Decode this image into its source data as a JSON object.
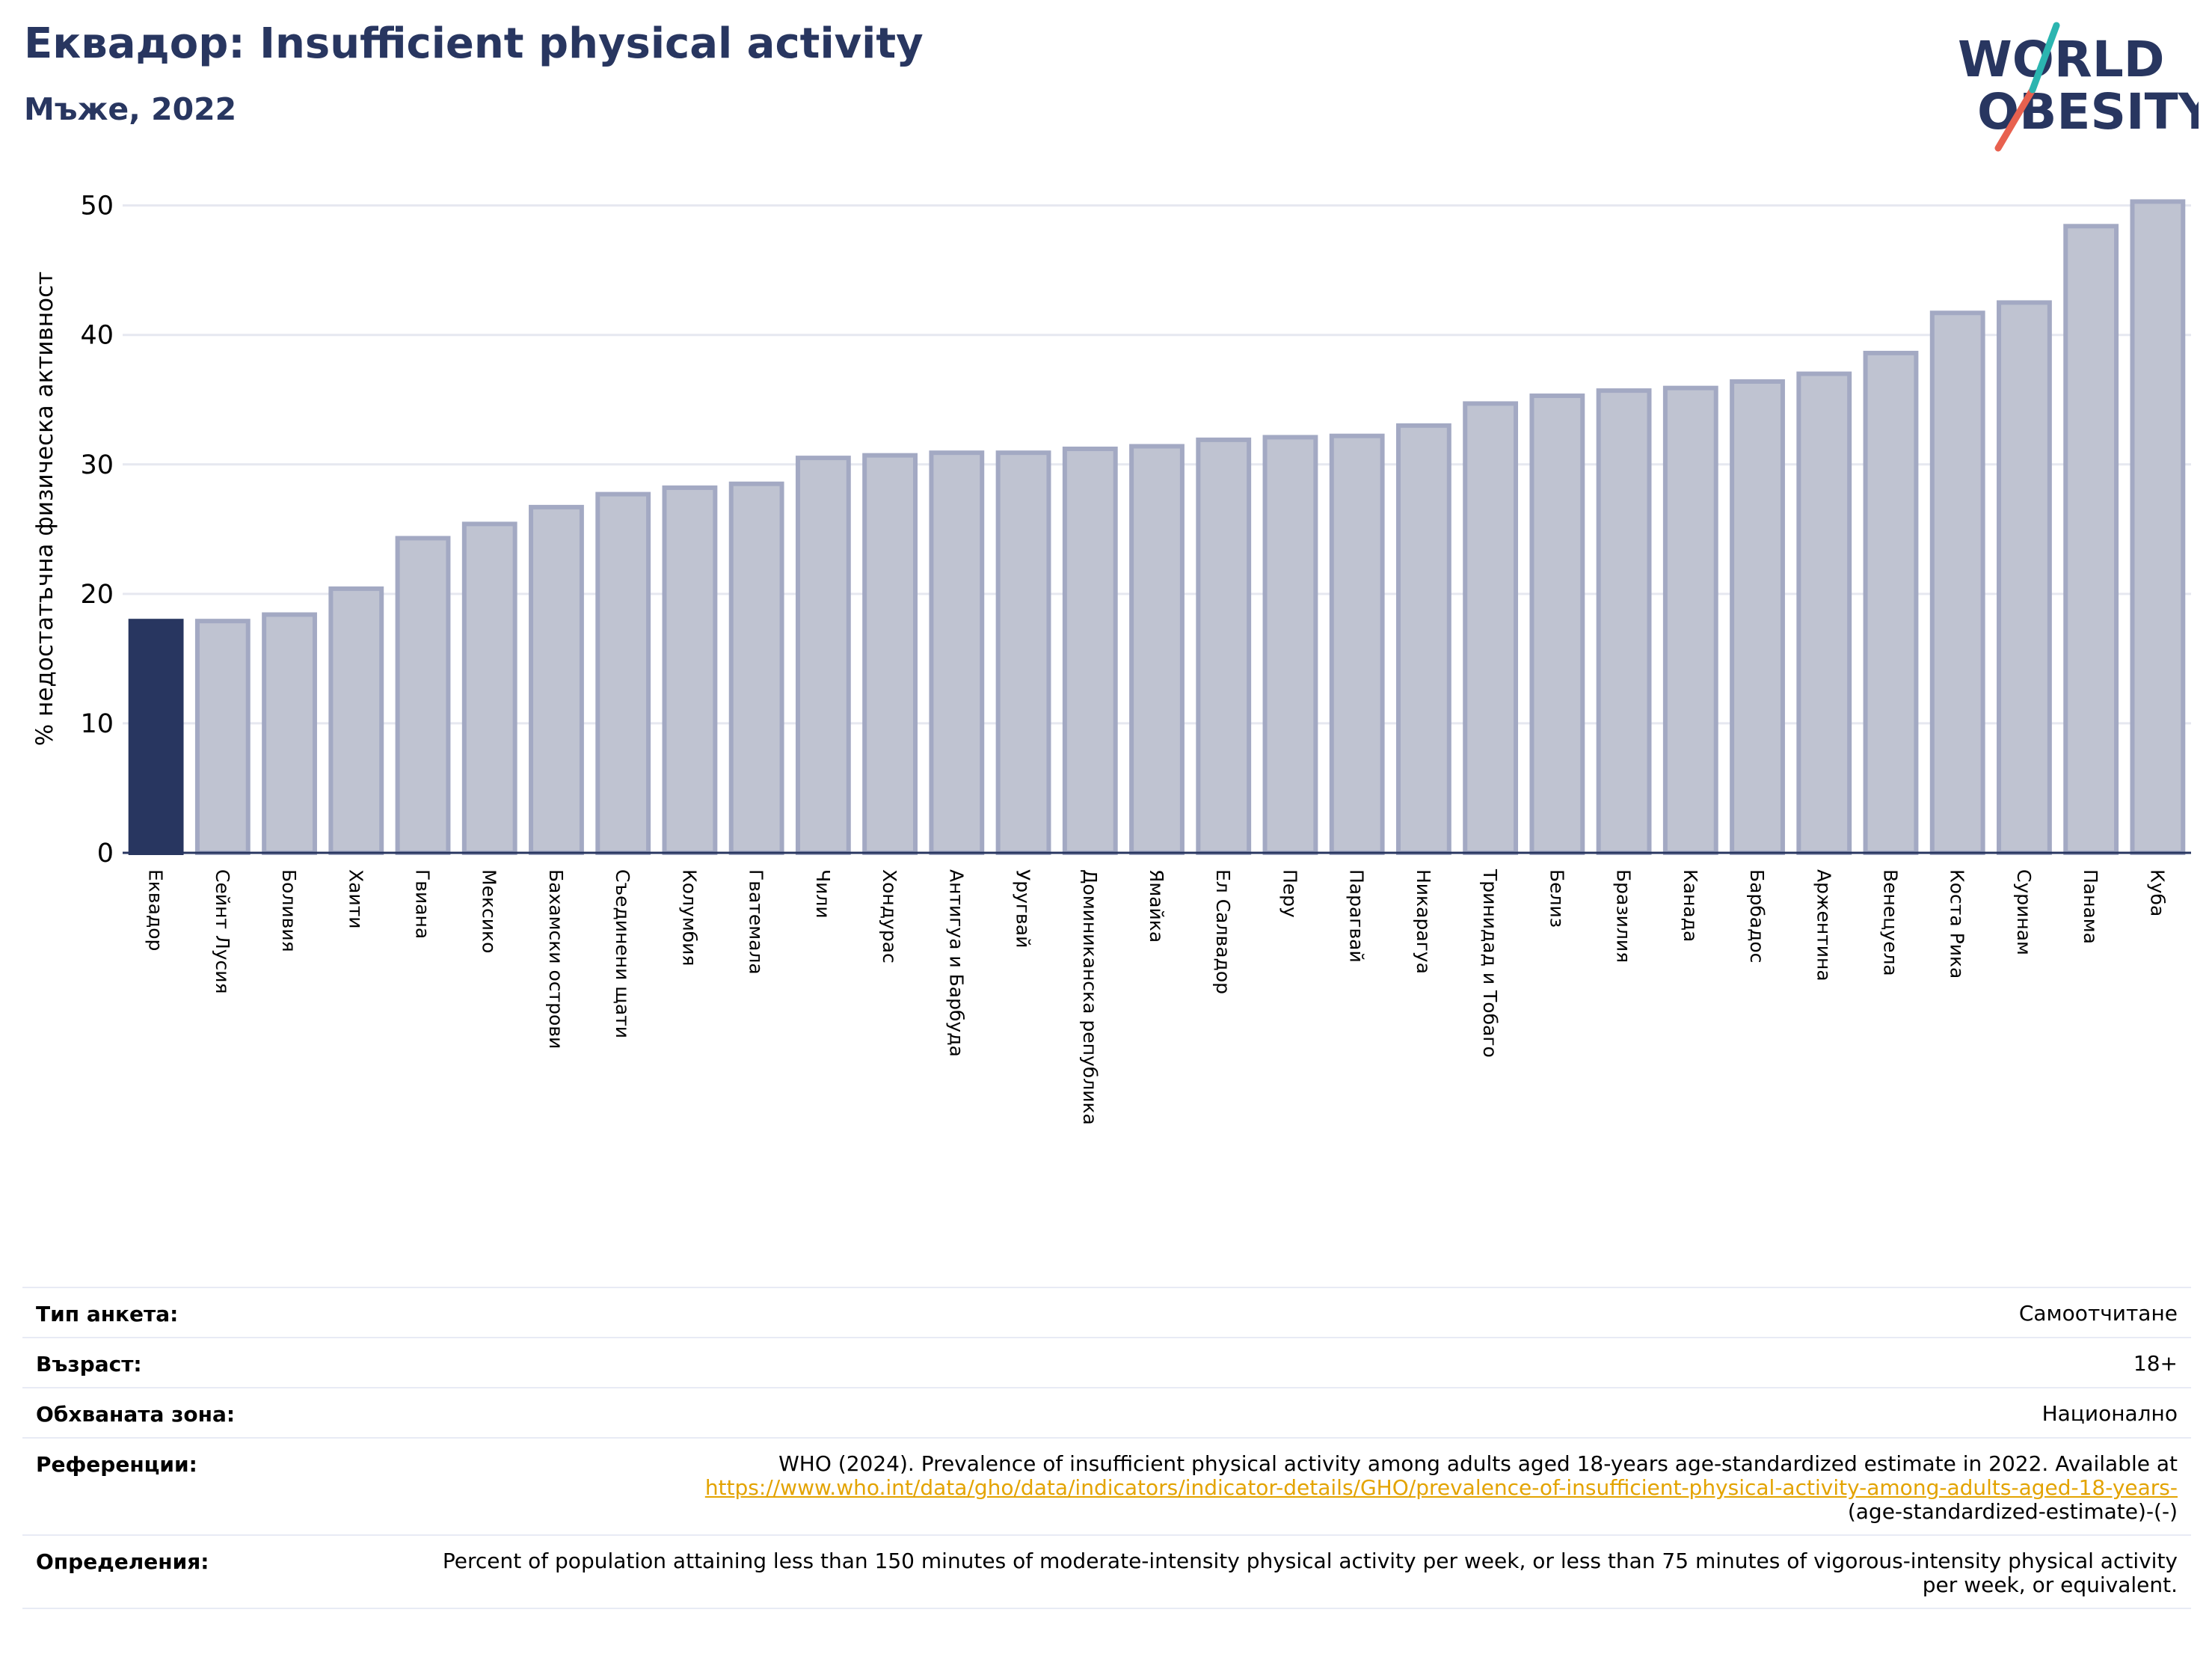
{
  "header": {
    "title": "Еквадор: Insufficient physical activity",
    "subtitle": "Мъже, 2022"
  },
  "logo": {
    "line1": "WORLD",
    "line2": "OBESITY"
  },
  "colors": {
    "highlight": "#283660",
    "bar": "#bfc3d1",
    "bar_edge": "#a3a9c3",
    "text": "#283660",
    "link": "#e3a300"
  },
  "chart_data": {
    "type": "bar",
    "ylabel": "% недостатъчна физическа активност",
    "ylim": [
      0,
      52
    ],
    "yticks": [
      0,
      10,
      20,
      30,
      40,
      50
    ],
    "grid": true,
    "highlight_index": 0,
    "categories": [
      "Еквадор",
      "Сейнт Лусия",
      "Боливия",
      "Хаити",
      "Гвиана",
      "Мексико",
      "Бахамски острови",
      "Съединени щати",
      "Колумбия",
      "Гватемала",
      "Чили",
      "Хондурас",
      "Антигуа и Барбуда",
      "Уругвай",
      "Доминиканска република",
      "Ямайка",
      "Ел Салвадор",
      "Перу",
      "Парагвай",
      "Никарагуа",
      "Тринидад и Тобаго",
      "Белиз",
      "Бразилия",
      "Канада",
      "Барбадос",
      "Аржентина",
      "Венецуела",
      "Коста Рика",
      "Суринам",
      "Панама",
      "Куба"
    ],
    "values": [
      17.9,
      17.9,
      18.4,
      20.4,
      24.3,
      25.4,
      26.7,
      27.7,
      28.2,
      28.5,
      30.5,
      30.7,
      30.9,
      30.9,
      31.2,
      31.4,
      31.9,
      32.1,
      32.2,
      33.0,
      34.7,
      35.3,
      35.7,
      35.9,
      36.4,
      37.0,
      38.6,
      41.7,
      42.5,
      48.4,
      50.3
    ]
  },
  "info": {
    "survey_type_label": "Тип анкета:",
    "survey_type_value": "Самоотчитане",
    "age_label": "Възраст:",
    "age_value": "18+",
    "area_label": "Обхваната зона:",
    "area_value": "Национално",
    "references_label": "Референции:",
    "references_text": "WHO (2024). Prevalence of insufficient physical activity among adults aged 18-years age-standardized estimate in 2022. Available at",
    "references_link": "https://www.who.int/data/gho/data/indicators/indicator-details/GHO/prevalence-of-insufficient-physical-activity-among-adults-aged-18-years-",
    "references_tail": "(age-standardized-estimate)-(-)",
    "definitions_label": "Определения:",
    "definitions_value": "Percent of population attaining less than 150 minutes of moderate-intensity physical activity per week, or less than 75 minutes of vigorous-intensity physical activity per week, or equivalent."
  }
}
